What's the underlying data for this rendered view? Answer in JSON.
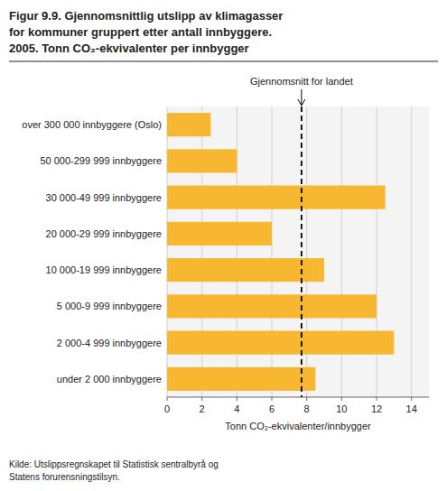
{
  "chart_data": {
    "type": "bar",
    "orientation": "horizontal",
    "title": "Figur 9.9. Gjennomsnittlig utslipp av klimagasser\nfor kommuner gruppert etter antall innbyggere.\n2005. Tonn CO₂-ekvivalenter per innbygger",
    "categories": [
      "over 300 000 innbyggere (Oslo)",
      "50 000-299 999 innbyggere",
      "30 000-49 999 innbyggere",
      "20 000-29 999 innbyggere",
      "10 000-19 999 innbyggere",
      "5 000-9 999 innbyggere",
      "2 000-4 999 innbyggere",
      "under 2 000 innbyggere"
    ],
    "values": [
      2.5,
      4.0,
      12.5,
      6.0,
      9.0,
      12.0,
      13.0,
      8.5
    ],
    "color": "#F7B731",
    "xlabel": "Tonn CO₂-ekvivalenter/innbygger",
    "xlim": [
      0,
      15
    ],
    "xticks": [
      0,
      2,
      4,
      6,
      8,
      10,
      12,
      14
    ],
    "grid": true,
    "annotations": [
      {
        "label": "Gjennomsnitt for landet",
        "value": 7.7
      }
    ],
    "source": "Kilde: Utslippsregnskapet til Statistisk sentralbyrå og\nStatens forurensningstilsyn."
  }
}
